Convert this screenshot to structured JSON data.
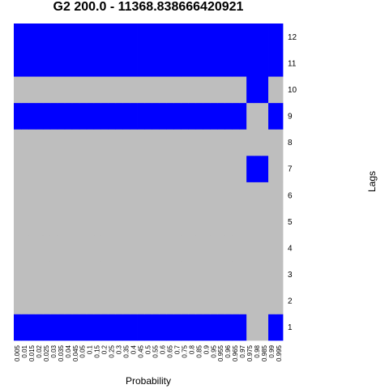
{
  "chart_data": {
    "type": "heatmap",
    "title": "G2 200.0 - 11368.838666420921",
    "xlabel": "Probability",
    "ylabel": "Lags",
    "x": [
      "0.005",
      "0.01",
      "0.015",
      "0.02",
      "0.025",
      "0.03",
      "0.035",
      "0.04",
      "0.045",
      "0.05",
      "0.1",
      "0.15",
      "0.2",
      "0.25",
      "0.3",
      "0.35",
      "0.4",
      "0.45",
      "0.5",
      "0.55",
      "0.6",
      "0.65",
      "0.7",
      "0.75",
      "0.8",
      "0.85",
      "0.9",
      "0.95",
      "0.955",
      "0.96",
      "0.965",
      "0.97",
      "0.975",
      "0.98",
      "0.985",
      "0.99",
      "0.995"
    ],
    "y": [
      "1",
      "2",
      "3",
      "4",
      "5",
      "6",
      "7",
      "8",
      "9",
      "10",
      "11",
      "12"
    ],
    "colors": {
      "on": "#0000ff",
      "off": "#bebebe"
    },
    "rows": [
      {
        "lag": "1",
        "values": [
          1,
          1,
          1,
          1,
          1,
          1,
          1,
          1,
          1,
          1,
          1,
          1,
          1,
          1,
          1,
          1,
          1,
          1,
          1,
          1,
          1,
          1,
          1,
          1,
          1,
          1,
          1,
          1,
          1,
          1,
          1,
          1,
          0,
          0,
          0,
          1,
          1
        ]
      },
      {
        "lag": "2",
        "values": [
          0,
          0,
          0,
          0,
          0,
          0,
          0,
          0,
          0,
          0,
          0,
          0,
          0,
          0,
          0,
          0,
          0,
          0,
          0,
          0,
          0,
          0,
          0,
          0,
          0,
          0,
          0,
          0,
          0,
          0,
          0,
          0,
          0,
          0,
          0,
          0,
          0
        ]
      },
      {
        "lag": "3",
        "values": [
          0,
          0,
          0,
          0,
          0,
          0,
          0,
          0,
          0,
          0,
          0,
          0,
          0,
          0,
          0,
          0,
          0,
          0,
          0,
          0,
          0,
          0,
          0,
          0,
          0,
          0,
          0,
          0,
          0,
          0,
          0,
          0,
          0,
          0,
          0,
          0,
          0
        ]
      },
      {
        "lag": "4",
        "values": [
          0,
          0,
          0,
          0,
          0,
          0,
          0,
          0,
          0,
          0,
          0,
          0,
          0,
          0,
          0,
          0,
          0,
          0,
          0,
          0,
          0,
          0,
          0,
          0,
          0,
          0,
          0,
          0,
          0,
          0,
          0,
          0,
          0,
          0,
          0,
          0,
          0
        ]
      },
      {
        "lag": "5",
        "values": [
          0,
          0,
          0,
          0,
          0,
          0,
          0,
          0,
          0,
          0,
          0,
          0,
          0,
          0,
          0,
          0,
          0,
          0,
          0,
          0,
          0,
          0,
          0,
          0,
          0,
          0,
          0,
          0,
          0,
          0,
          0,
          0,
          0,
          0,
          0,
          0,
          0
        ]
      },
      {
        "lag": "6",
        "values": [
          0,
          0,
          0,
          0,
          0,
          0,
          0,
          0,
          0,
          0,
          0,
          0,
          0,
          0,
          0,
          0,
          0,
          0,
          0,
          0,
          0,
          0,
          0,
          0,
          0,
          0,
          0,
          0,
          0,
          0,
          0,
          0,
          0,
          0,
          0,
          0,
          0
        ]
      },
      {
        "lag": "7",
        "values": [
          0,
          0,
          0,
          0,
          0,
          0,
          0,
          0,
          0,
          0,
          0,
          0,
          0,
          0,
          0,
          0,
          0,
          0,
          0,
          0,
          0,
          0,
          0,
          0,
          0,
          0,
          0,
          0,
          0,
          0,
          0,
          0,
          1,
          1,
          1,
          0,
          0
        ]
      },
      {
        "lag": "8",
        "values": [
          0,
          0,
          0,
          0,
          0,
          0,
          0,
          0,
          0,
          0,
          0,
          0,
          0,
          0,
          0,
          0,
          0,
          0,
          0,
          0,
          0,
          0,
          0,
          0,
          0,
          0,
          0,
          0,
          0,
          0,
          0,
          0,
          0,
          0,
          0,
          0,
          0
        ]
      },
      {
        "lag": "9",
        "values": [
          1,
          1,
          1,
          1,
          1,
          1,
          1,
          1,
          1,
          1,
          1,
          1,
          1,
          1,
          1,
          1,
          1,
          1,
          1,
          1,
          1,
          1,
          1,
          1,
          1,
          1,
          1,
          1,
          1,
          1,
          1,
          1,
          0,
          0,
          0,
          1,
          1
        ]
      },
      {
        "lag": "10",
        "values": [
          0,
          0,
          0,
          0,
          0,
          0,
          0,
          0,
          0,
          0,
          0,
          0,
          0,
          0,
          0,
          0,
          0,
          0,
          0,
          0,
          0,
          0,
          0,
          0,
          0,
          0,
          0,
          0,
          0,
          0,
          0,
          0,
          1,
          1,
          1,
          0,
          0
        ]
      },
      {
        "lag": "11",
        "values": [
          1,
          1,
          1,
          1,
          1,
          1,
          1,
          1,
          1,
          1,
          1,
          1,
          1,
          1,
          1,
          1,
          1,
          1,
          1,
          1,
          1,
          1,
          1,
          1,
          1,
          1,
          1,
          1,
          1,
          1,
          1,
          1,
          1,
          1,
          1,
          1,
          1
        ]
      },
      {
        "lag": "12",
        "values": [
          1,
          1,
          1,
          1,
          1,
          1,
          1,
          1,
          1,
          1,
          1,
          1,
          1,
          1,
          1,
          1,
          1,
          1,
          1,
          1,
          1,
          1,
          1,
          1,
          1,
          1,
          1,
          1,
          1,
          1,
          1,
          1,
          1,
          1,
          1,
          1,
          1
        ]
      }
    ]
  }
}
